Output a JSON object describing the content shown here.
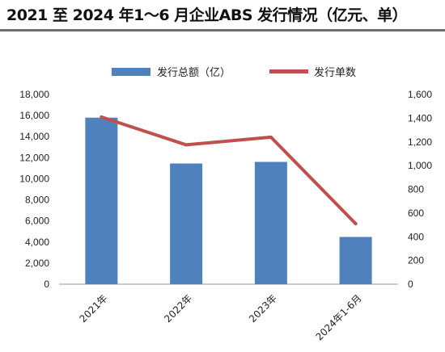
{
  "title": "2021 至 2024 年1～6 月企业ABS 发行情况（亿元、单）",
  "chart_data": {
    "type": "bar+line",
    "categories": [
      "2021年",
      "2022年",
      "2023年",
      "2024年1-6月"
    ],
    "series": [
      {
        "name": "发行总额（亿）",
        "type": "bar",
        "axis": "left",
        "color": "#4f81bd",
        "values": [
          15800,
          11450,
          11600,
          4480
        ]
      },
      {
        "name": "发行单数",
        "type": "line",
        "axis": "right",
        "color": "#c0504d",
        "values": [
          1410,
          1175,
          1240,
          510
        ]
      }
    ],
    "y_left": {
      "min": 0,
      "max": 18000,
      "step": 2000,
      "ticks": [
        "0",
        "2,000",
        "4,000",
        "6,000",
        "8,000",
        "10,000",
        "12,000",
        "14,000",
        "16,000",
        "18,000"
      ]
    },
    "y_right": {
      "min": 0,
      "max": 1600,
      "step": 200,
      "ticks": [
        "0",
        "200",
        "400",
        "600",
        "800",
        "1,000",
        "1,200",
        "1,400",
        "1,600"
      ]
    },
    "legend_position": "top",
    "grid": false
  }
}
